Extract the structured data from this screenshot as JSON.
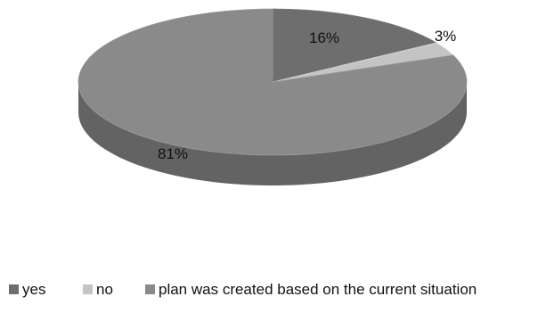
{
  "chart_data": {
    "type": "pie",
    "style": "3d",
    "categories": [
      "yes",
      "no",
      "plan was created based on the current situation"
    ],
    "values": [
      16,
      3,
      81
    ],
    "data_labels": [
      "16%",
      "3%",
      "81%"
    ],
    "colors": {
      "yes": "#6e6e6e",
      "no": "#c4c4c4",
      "plan was created based on the current situation": "#8a8a8a"
    },
    "legend_position": "bottom"
  }
}
